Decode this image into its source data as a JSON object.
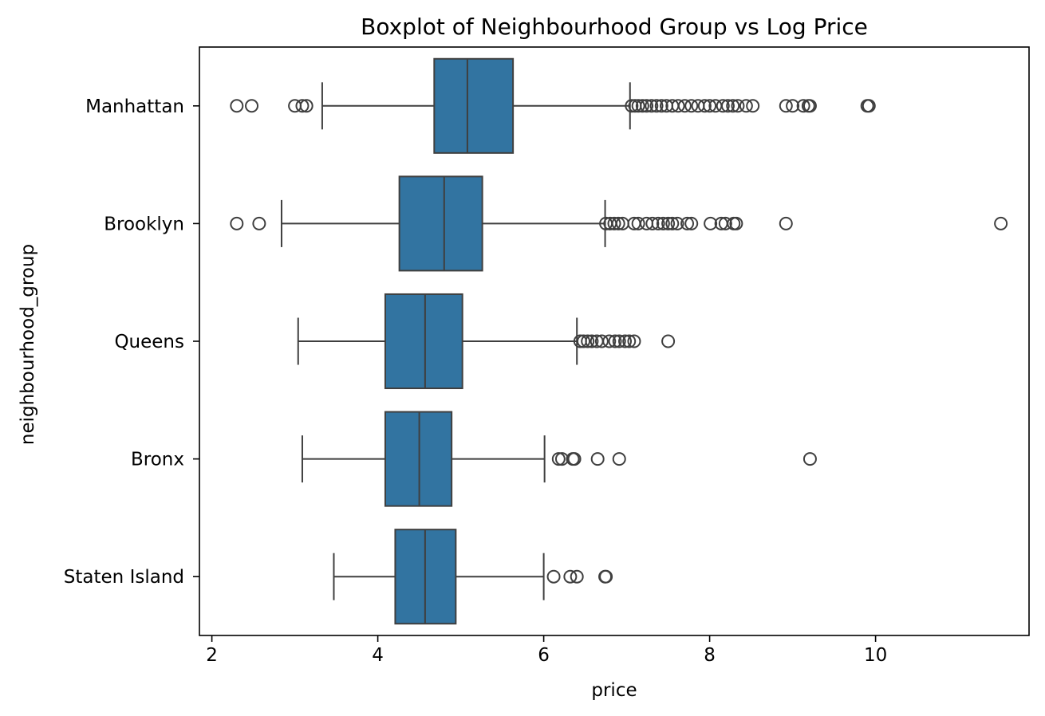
{
  "chart_data": {
    "type": "boxplot",
    "orientation": "horizontal",
    "title": "Boxplot of Neighbourhood Group vs Log Price",
    "xlabel": "price",
    "ylabel": "neighbourhood_group",
    "xlim": [
      1.85,
      11.85
    ],
    "xticks": [
      2,
      4,
      6,
      8,
      10
    ],
    "grid": false,
    "box_color": "#3274a1",
    "line_color": "#3f3f3f",
    "categories": [
      "Manhattan",
      "Brooklyn",
      "Queens",
      "Bronx",
      "Staten Island"
    ],
    "boxes": [
      {
        "category": "Manhattan",
        "whisker_low": 3.33,
        "q1": 4.68,
        "median": 5.08,
        "q3": 5.63,
        "whisker_high": 7.04,
        "outliers": [
          2.3,
          2.48,
          3.0,
          3.09,
          3.14,
          7.06,
          7.1,
          7.14,
          7.19,
          7.24,
          7.3,
          7.36,
          7.42,
          7.48,
          7.55,
          7.62,
          7.7,
          7.78,
          7.86,
          7.94,
          8.0,
          8.07,
          8.16,
          8.22,
          8.28,
          8.34,
          8.44,
          8.52,
          8.92,
          9.0,
          9.13,
          9.19,
          9.21,
          9.9,
          9.92
        ]
      },
      {
        "category": "Brooklyn",
        "whisker_low": 2.84,
        "q1": 4.26,
        "median": 4.8,
        "q3": 5.26,
        "whisker_high": 6.74,
        "outliers": [
          2.3,
          2.57,
          6.75,
          6.8,
          6.85,
          6.9,
          6.95,
          7.09,
          7.14,
          7.24,
          7.31,
          7.38,
          7.44,
          7.5,
          7.55,
          7.61,
          7.73,
          7.78,
          8.01,
          8.14,
          8.19,
          8.29,
          8.32,
          8.92,
          11.51
        ]
      },
      {
        "category": "Queens",
        "whisker_low": 3.04,
        "q1": 4.09,
        "median": 4.57,
        "q3": 5.02,
        "whisker_high": 6.4,
        "outliers": [
          6.44,
          6.48,
          6.53,
          6.58,
          6.64,
          6.7,
          6.79,
          6.86,
          6.91,
          6.98,
          7.03,
          7.09,
          7.5
        ]
      },
      {
        "category": "Bronx",
        "whisker_low": 3.09,
        "q1": 4.09,
        "median": 4.5,
        "q3": 4.89,
        "whisker_high": 6.01,
        "outliers": [
          6.18,
          6.22,
          6.35,
          6.37,
          6.65,
          6.91,
          9.21
        ]
      },
      {
        "category": "Staten Island",
        "whisker_low": 3.47,
        "q1": 4.21,
        "median": 4.57,
        "q3": 4.94,
        "whisker_high": 6.0,
        "outliers": [
          6.12,
          6.32,
          6.4,
          6.74,
          6.75
        ]
      }
    ]
  }
}
